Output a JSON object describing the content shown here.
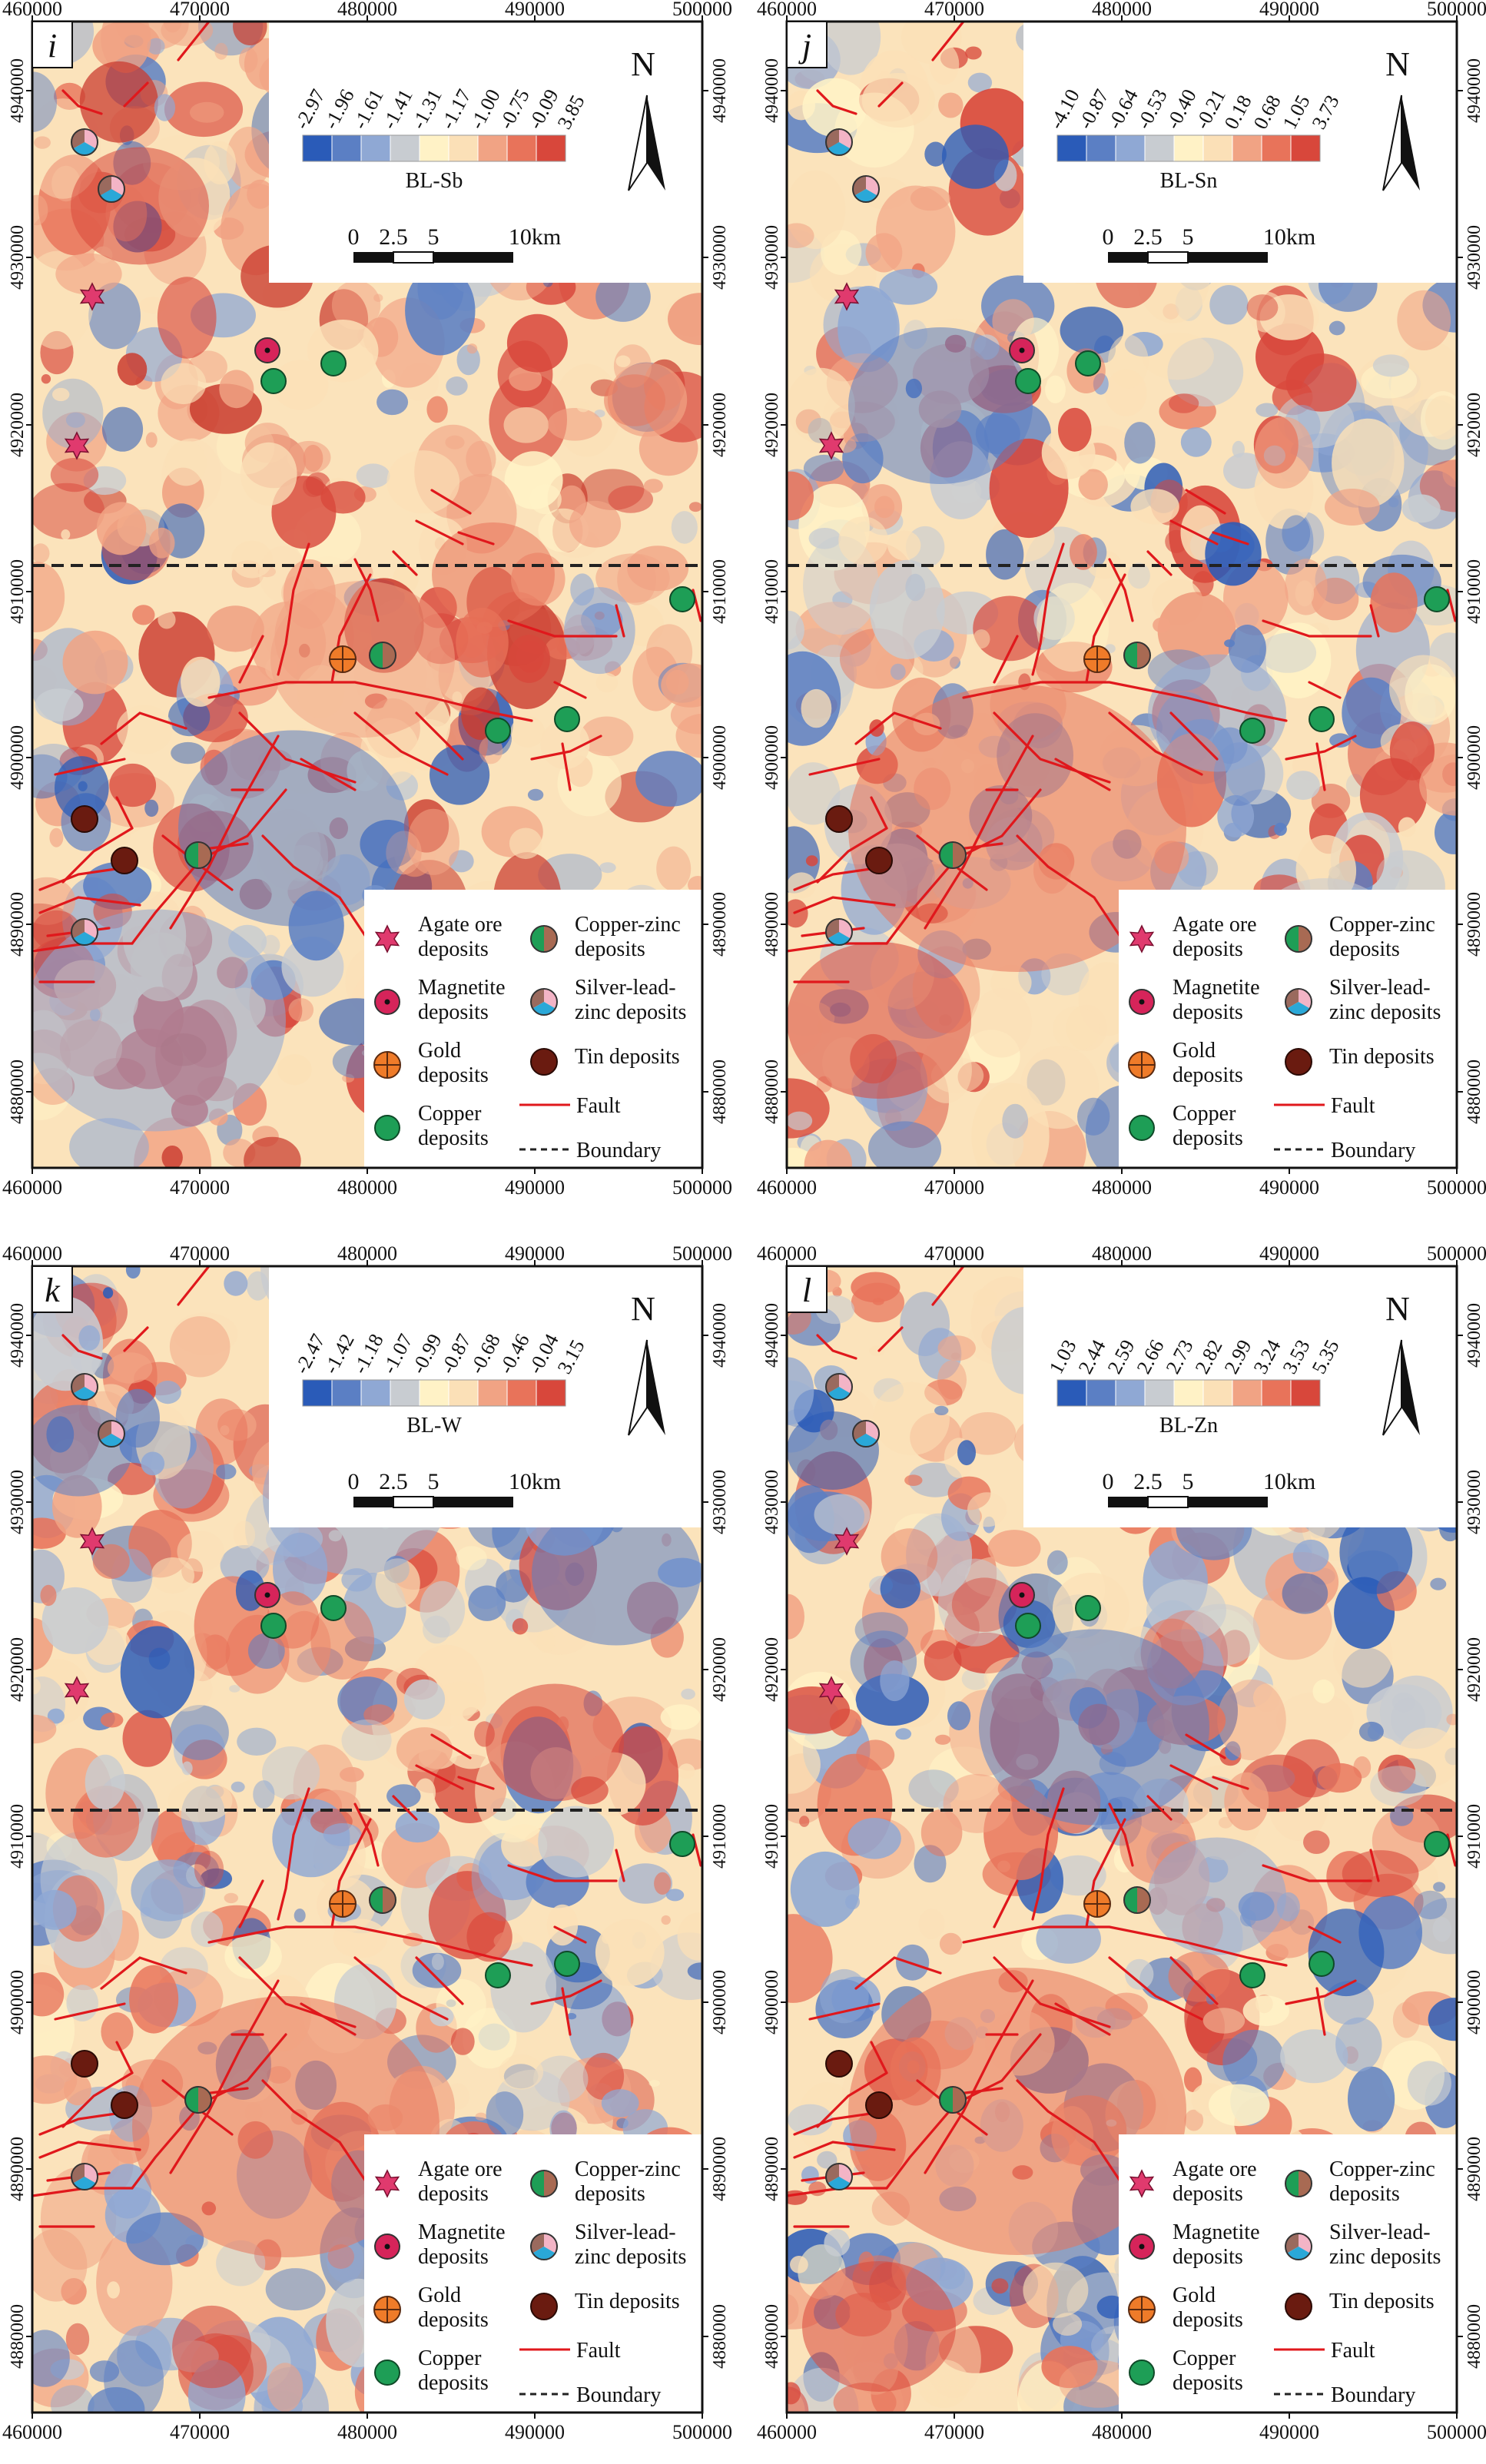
{
  "figure": {
    "x_ticks": [
      "460000",
      "470000",
      "480000",
      "490000",
      "500000"
    ],
    "y_ticks": [
      "4880000",
      "4890000",
      "4900000",
      "4910000",
      "4920000",
      "4930000",
      "4940000"
    ],
    "north_label": "N",
    "scale_bar": {
      "labels": [
        "0",
        "2.5",
        "5",
        "10km"
      ]
    },
    "panels": [
      {
        "label": "i",
        "element": "BL-Sb",
        "class_breaks": [
          "-2.97",
          "-1.96",
          "-1.61",
          "-1.41",
          "-1.31",
          "-1.17",
          "-1.00",
          "-0.75",
          "-0.09",
          "3.85"
        ],
        "blob_palette": [
          "#d8473b",
          "#f1a384",
          "#fbe0b7",
          "#f1a384",
          "#ca3c2f",
          "#fbe0b7",
          "#f1a384"
        ]
      },
      {
        "label": "j",
        "element": "BL-Sn",
        "class_breaks": [
          "-4.10",
          "-0.87",
          "-0.64",
          "-0.53",
          "-0.40",
          "-0.21",
          "0.18",
          "0.68",
          "1.05",
          "3.73"
        ],
        "blob_palette": [
          "#8fa8d4",
          "#fbe0b7",
          "#5b7fc4",
          "#f1a384",
          "#d8473b",
          "#c8ccd1",
          "#fbe0b7"
        ]
      },
      {
        "label": "k",
        "element": "BL-W",
        "class_breaks": [
          "-2.47",
          "-1.42",
          "-1.18",
          "-1.07",
          "-0.99",
          "-0.87",
          "-0.68",
          "-0.46",
          "-0.04",
          "3.15"
        ],
        "blob_palette": [
          "#5b7fc4",
          "#f1a384",
          "#fbe0b7",
          "#8fa8d4",
          "#d8473b",
          "#c8ccd1",
          "#e8735a"
        ]
      },
      {
        "label": "l",
        "element": "BL-Zn",
        "class_breaks": [
          "1.03",
          "2.44",
          "2.59",
          "2.66",
          "2.73",
          "2.82",
          "2.99",
          "3.24",
          "3.53",
          "5.35"
        ],
        "blob_palette": [
          "#8fa8d4",
          "#fbe0b7",
          "#5b7fc4",
          "#f1a384",
          "#d8473b",
          "#c8ccd1",
          "#e8735a"
        ]
      }
    ],
    "color_ramp": [
      "#2a5bb8",
      "#5b7fc4",
      "#8fa8d4",
      "#c8ccd1",
      "#fff2c6",
      "#fbe0b7",
      "#f1a384",
      "#e8735a",
      "#d8473b"
    ],
    "legend": [
      {
        "key": "agate",
        "text": [
          "Agate ore",
          "deposits"
        ],
        "color": "#e03a6e"
      },
      {
        "key": "copper-zinc",
        "text": [
          "Copper-zinc",
          "deposits"
        ],
        "colors": [
          "#1e9e56",
          "#a86a53"
        ]
      },
      {
        "key": "magnetite",
        "text": [
          "Magnetite",
          "deposits"
        ],
        "color": "#d6245a"
      },
      {
        "key": "silver-lead-zinc",
        "text": [
          "Silver-lead-",
          "zinc deposits"
        ],
        "colors": [
          "#9a6a5e",
          "#f3b4c6",
          "#2aa8d8"
        ]
      },
      {
        "key": "gold",
        "text": [
          "Gold",
          "deposits"
        ],
        "color": "#ef7b29"
      },
      {
        "key": "tin",
        "text": [
          "Tin deposits"
        ],
        "color": "#6a1b10"
      },
      {
        "key": "copper",
        "text": [
          "Copper",
          "deposits"
        ],
        "color": "#1e9e56"
      },
      {
        "key": "fault",
        "text": [
          "Fault"
        ],
        "color": "#e0181c"
      },
      {
        "key": "boundary",
        "text": [
          "Boundary"
        ],
        "color": "#222222"
      }
    ]
  }
}
